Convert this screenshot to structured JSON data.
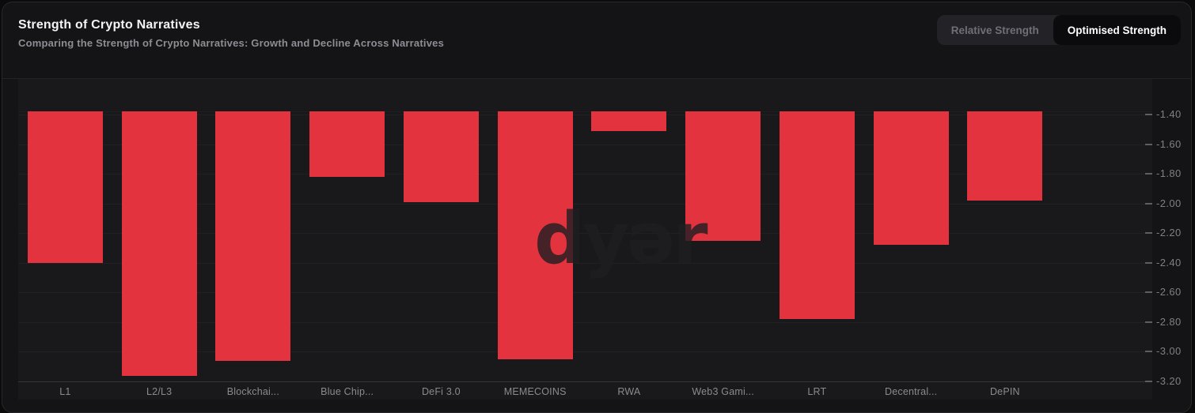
{
  "header": {
    "title": "Strength of Crypto Narratives",
    "subtitle": "Comparing the Strength of Crypto Narratives: Growth and Decline Across Narratives"
  },
  "toggle": {
    "options": [
      {
        "label": "Relative Strength",
        "active": false
      },
      {
        "label": "Optimised Strength",
        "active": true
      }
    ]
  },
  "watermark_text": "dyər",
  "colors": {
    "card_background": "#141416",
    "plot_background": "#19191b",
    "bar_red": "#e2333f",
    "gridline": "#212125",
    "axis_line": "#35353a",
    "tick_text": "#7f7f86",
    "category_text": "#8a8a90",
    "title_text": "#f4f4f5",
    "subtitle_text": "#8d8d94",
    "toggle_active_bg": "#0b0b0d",
    "toggle_container_bg": "#232327"
  },
  "chart_data": {
    "type": "bar",
    "title": "Strength of Crypto Narratives",
    "subtitle": "Comparing the Strength of Crypto Narratives: Growth and Decline Across Narratives",
    "categories": [
      "L1",
      "L2/L3",
      "Blockchai...",
      "Blue Chip...",
      "DeFi 3.0",
      "MEMECOINS",
      "RWA",
      "Web3 Gami...",
      "LRT",
      "Decentral...",
      "DePIN"
    ],
    "values": [
      -2.4,
      -3.16,
      -3.06,
      -1.82,
      -1.99,
      -3.05,
      -1.51,
      -2.25,
      -2.78,
      -2.28,
      -1.98
    ],
    "bar_color": "#e2333f",
    "y_tick_labels": [
      "-1.40",
      "-1.60",
      "-1.80",
      "-2.00",
      "-2.20",
      "-2.40",
      "-2.60",
      "-2.80",
      "-3.00",
      "-3.20"
    ],
    "y_ticks": [
      -1.4,
      -1.6,
      -1.8,
      -2.0,
      -2.2,
      -2.4,
      -2.6,
      -2.8,
      -3.0,
      -3.2
    ],
    "ylim_top": -1.379,
    "ylim_bottom": -3.2,
    "grid": true,
    "axis_side": "right",
    "xlabel": "",
    "ylabel": ""
  }
}
